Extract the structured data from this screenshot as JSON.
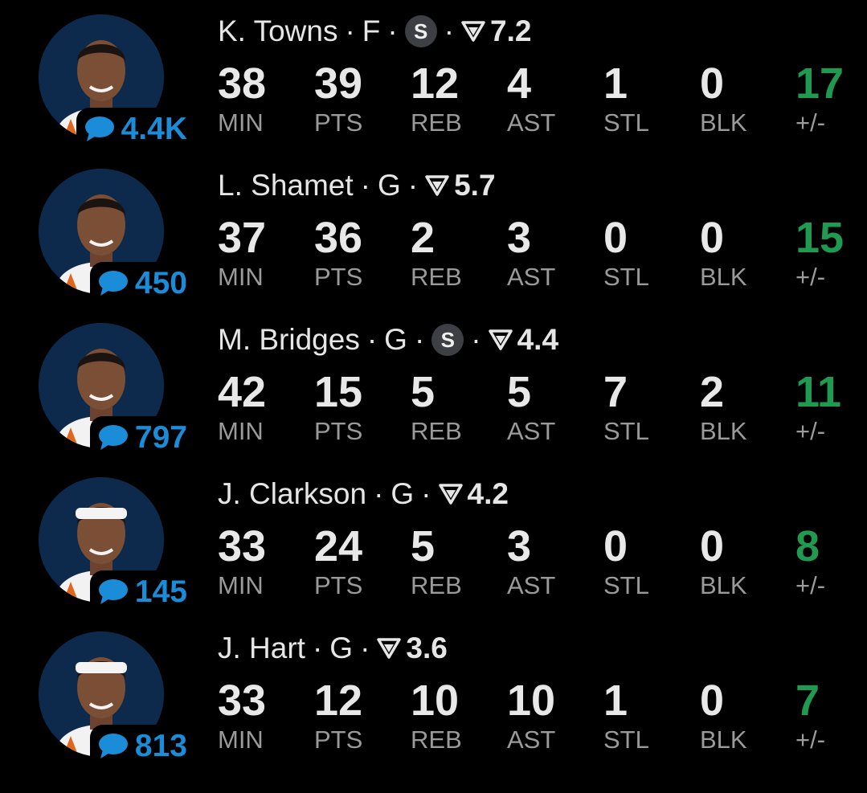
{
  "colors": {
    "background": "#000000",
    "comment_blue": "#1a8cd8",
    "positive_green": "#1f9a50",
    "label_gray": "#9a9a9a"
  },
  "icons": {
    "comment": "speech-bubble-icon",
    "starter": "s-badge",
    "rating": "rating-triangle-icon"
  },
  "stat_labels": {
    "min": "MIN",
    "pts": "PTS",
    "reb": "REB",
    "ast": "AST",
    "stl": "STL",
    "blk": "BLK",
    "pm": "+/-"
  },
  "separator": "·",
  "players": [
    {
      "name": "K. Towns",
      "pos": "F",
      "starter": true,
      "starter_label": "S",
      "rating": "7.2",
      "comments": "4.4K",
      "min": "38",
      "pts": "39",
      "reb": "12",
      "ast": "4",
      "stl": "1",
      "blk": "0",
      "pm": "17",
      "headband": false
    },
    {
      "name": "L. Shamet",
      "pos": "G",
      "starter": false,
      "starter_label": "",
      "rating": "5.7",
      "comments": "450",
      "min": "37",
      "pts": "36",
      "reb": "2",
      "ast": "3",
      "stl": "0",
      "blk": "0",
      "pm": "15",
      "headband": false
    },
    {
      "name": "M. Bridges",
      "pos": "G",
      "starter": true,
      "starter_label": "S",
      "rating": "4.4",
      "comments": "797",
      "min": "42",
      "pts": "15",
      "reb": "5",
      "ast": "5",
      "stl": "7",
      "blk": "2",
      "pm": "11",
      "headband": false
    },
    {
      "name": "J. Clarkson",
      "pos": "G",
      "starter": false,
      "starter_label": "",
      "rating": "4.2",
      "comments": "145",
      "min": "33",
      "pts": "24",
      "reb": "5",
      "ast": "3",
      "stl": "0",
      "blk": "0",
      "pm": "8",
      "headband": true
    },
    {
      "name": "J. Hart",
      "pos": "G",
      "starter": false,
      "starter_label": "",
      "rating": "3.6",
      "comments": "813",
      "min": "33",
      "pts": "12",
      "reb": "10",
      "ast": "10",
      "stl": "1",
      "blk": "0",
      "pm": "7",
      "headband": true
    }
  ]
}
